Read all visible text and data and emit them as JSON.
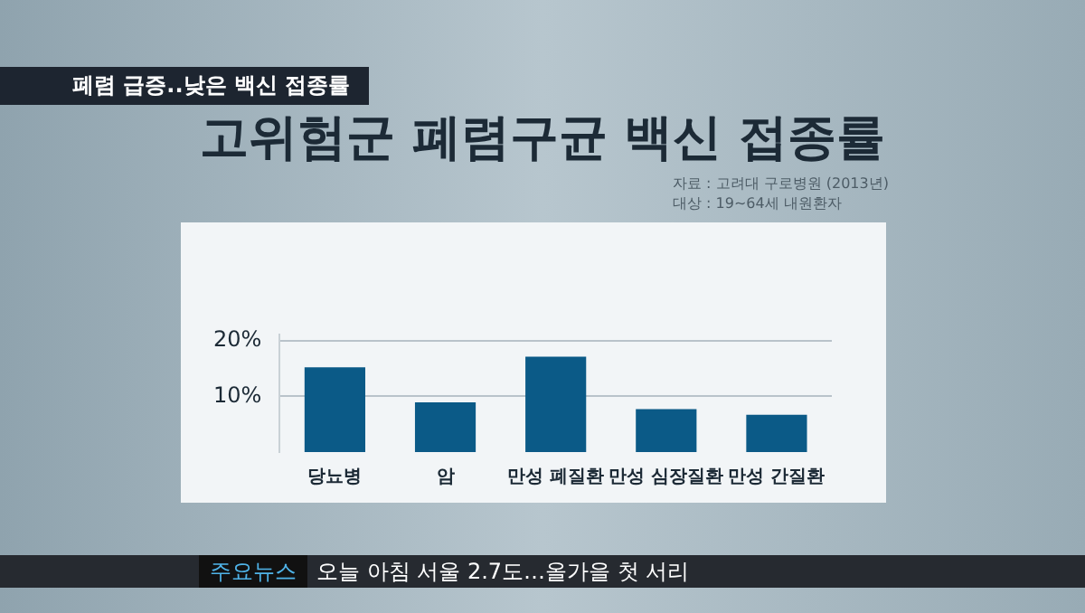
{
  "chart_data": {
    "type": "bar",
    "title": "고위험군 폐렴구균 백신 접종률",
    "categories": [
      "당뇨병",
      "암",
      "만성 폐질환",
      "만성 심장질환",
      "만성 간질환"
    ],
    "values": [
      15.2,
      8.9,
      17.1,
      7.7,
      6.7
    ],
    "color": "#0b5a87",
    "ylim": [
      0,
      21
    ],
    "yticks": [
      {
        "value": 10,
        "label": "10%"
      },
      {
        "value": 20,
        "label": "20%"
      }
    ],
    "grid": "y",
    "annotations": [
      "폐렴 급증..낮은 백신 접종률",
      "자료 : 고려대 구로병원 (2013년)",
      "대상 : 19~64세 내원환자",
      "주요뉴스",
      "오늘 아침 서울 2.7도…올가을 첫 서리"
    ]
  }
}
